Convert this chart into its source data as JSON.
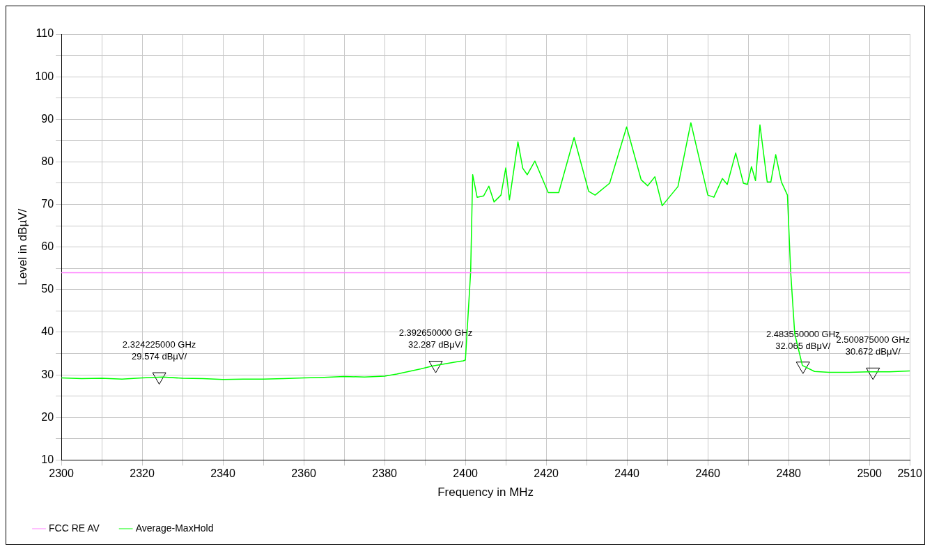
{
  "chart_data": {
    "type": "line",
    "xlabel": "Frequency in MHz",
    "ylabel": "Level in dBµV/",
    "xlim": [
      2300,
      2510
    ],
    "ylim": [
      10,
      110
    ],
    "xticks": [
      2300,
      {
        "value": 2310,
        "label": null
      },
      2320,
      {
        "value": 2330,
        "label": null
      },
      2340,
      {
        "value": 2350,
        "label": null
      },
      2360,
      {
        "value": 2370,
        "label": null
      },
      2380,
      {
        "value": 2390,
        "label": null
      },
      2400,
      {
        "value": 2410,
        "label": null
      },
      2420,
      {
        "value": 2430,
        "label": null
      },
      2440,
      {
        "value": 2450,
        "label": null
      },
      2460,
      {
        "value": 2470,
        "label": null
      },
      2480,
      {
        "value": 2490,
        "label": null
      },
      2500,
      2510
    ],
    "yticks": [
      10,
      {
        "value": 15,
        "label": null
      },
      20,
      {
        "value": 25,
        "label": null
      },
      30,
      {
        "value": 35,
        "label": null
      },
      40,
      {
        "value": 45,
        "label": null
      },
      50,
      {
        "value": 55,
        "label": null
      },
      60,
      {
        "value": 65,
        "label": null
      },
      70,
      {
        "value": 75,
        "label": null
      },
      80,
      {
        "value": 85,
        "label": null
      },
      90,
      {
        "value": 95,
        "label": null
      },
      100,
      {
        "value": 105,
        "label": null
      },
      110
    ],
    "grid": true,
    "legend": "bottom left",
    "marker": "none",
    "line_style": "solid",
    "series": [
      {
        "name": "FCC RE AV",
        "color": "#ff80ff",
        "x": [
          2300,
          2510
        ],
        "values": [
          54,
          54
        ]
      },
      {
        "name": "Average-MaxHold",
        "color": "#00ff00",
        "x": [
          2300,
          2305,
          2310,
          2315,
          2320,
          2325,
          2330,
          2335,
          2340,
          2345,
          2350,
          2355,
          2360,
          2365,
          2370,
          2375,
          2380,
          2383,
          2386,
          2389,
          2392,
          2395,
          2398,
          2399.5,
          2400,
          2401.3,
          2401.8,
          2402.9,
          2404.5,
          2405.8,
          2407.1,
          2408.8,
          2410,
          2410.9,
          2413,
          2414.2,
          2415.3,
          2417.2,
          2420.5,
          2423.1,
          2426.9,
          2430.5,
          2432.1,
          2435.7,
          2439.9,
          2443.5,
          2445.1,
          2446.9,
          2448.7,
          2452.6,
          2455.8,
          2460,
          2461.5,
          2463.6,
          2464.8,
          2466.9,
          2468.8,
          2469.8,
          2470.8,
          2471.8,
          2472.9,
          2474.7,
          2475.6,
          2476.8,
          2478.2,
          2479.7,
          2480.5,
          2481.5,
          2483.4,
          2486.4,
          2490,
          2495,
          2500,
          2505,
          2510
        ],
        "marker": "none",
        "values": [
          29.3,
          29.1,
          29.2,
          29,
          29.3,
          29.5,
          29.2,
          29.1,
          28.9,
          29,
          29,
          29.1,
          29.3,
          29.4,
          29.6,
          29.5,
          29.7,
          30.2,
          30.8,
          31.4,
          32.1,
          32.6,
          33.1,
          33.3,
          33.5,
          54.2,
          77,
          71.7,
          72,
          74.3,
          70.6,
          72.2,
          78.6,
          71.1,
          84.7,
          78.5,
          77,
          80.2,
          72.8,
          72.8,
          85.7,
          73.1,
          72.2,
          75,
          88.2,
          75.8,
          74.4,
          76.5,
          69.7,
          74.2,
          89.2,
          72.2,
          71.7,
          76.1,
          74.7,
          82.1,
          75,
          74.7,
          78.9,
          75.6,
          88.7,
          75.3,
          75.3,
          81.7,
          75.3,
          72.2,
          54.2,
          39.7,
          32.2,
          30.8,
          30.6,
          30.6,
          30.7,
          30.7,
          30.9
        ]
      },
      {
        "type": "scatter",
        "color": "#000000",
        "marker": "triangle",
        "x": [
          2324.225,
          2392.65,
          2483.55,
          2500.875
        ],
        "values": [
          29.6,
          32.3,
          32.1,
          30.7
        ]
      }
    ],
    "annotations": [
      {
        "text": "2.324225000 GHz\n29.574 dBμV/",
        "x": 2324.225,
        "y": 29.574
      },
      {
        "text": "2.392650000 GHz\n32.287 dBμV/",
        "x": 2392.65,
        "y": 32.287
      },
      {
        "text": "2.483550000 GHz\n32.065 dBμV/",
        "x": 2483.55,
        "y": 32.065
      },
      {
        "text": "2.500875000 GHz\n30.672 dBμV/",
        "x": 2500.875,
        "y": 30.672
      }
    ]
  }
}
